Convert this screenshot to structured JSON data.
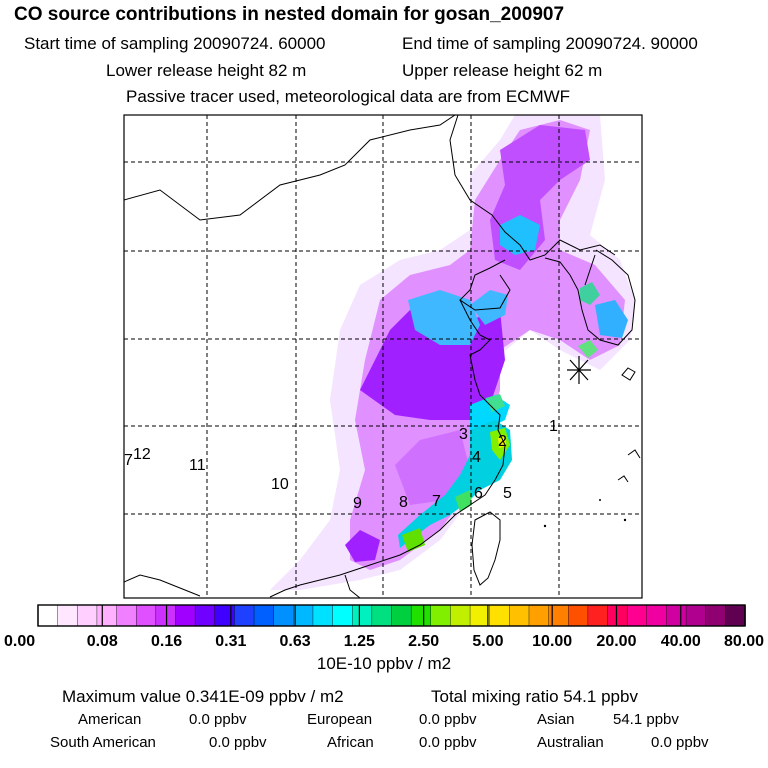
{
  "header": {
    "title": "CO  source contributions in nested domain for gosan_200907",
    "start_time": "Start time of sampling 20090724. 60000",
    "end_time": "End time of sampling 20090724. 90000",
    "lower_release": "Lower release height   82 m",
    "upper_release": "Upper release height   62 m",
    "tracer_note": "Passive tracer used, meteorological data are from ECMWF"
  },
  "map": {
    "region_labels": [
      "1",
      "2",
      "3",
      "4",
      "5",
      "6",
      "7",
      "8",
      "9",
      "10",
      "11",
      "12",
      "7"
    ],
    "receptor_marker": "gosan-receptor"
  },
  "colorbar": {
    "colors": [
      "#ffffff",
      "#ffe8ff",
      "#ffd0ff",
      "#ffb0ff",
      "#f080ff",
      "#e050ff",
      "#cc30ff",
      "#a000ff",
      "#7000ff",
      "#4000ff",
      "#2040ff",
      "#0060ff",
      "#0090ff",
      "#00b8ff",
      "#00e0ff",
      "#00ffff",
      "#00f0c0",
      "#00e080",
      "#00d040",
      "#20e000",
      "#80f000",
      "#c0f000",
      "#f0f000",
      "#ffe000",
      "#ffc000",
      "#ffa000",
      "#ff8000",
      "#ff5000",
      "#ff2020",
      "#ff0060",
      "#ff0090",
      "#f000a0",
      "#d000a0",
      "#b00090",
      "#900070",
      "#600050"
    ],
    "tick_labels": [
      "0.00",
      "0.08",
      "0.16",
      "0.31",
      "0.63",
      "1.25",
      "2.50",
      "5.00",
      "10.00",
      "20.00",
      "40.00",
      "80.00"
    ],
    "units": "10E-10 ppbv / m2"
  },
  "summary": {
    "max_value": "Maximum value  0.341E-09 ppbv / m2",
    "total_mixing": "Total mixing ratio       54.1 ppbv",
    "rows": [
      [
        {
          "label": "American",
          "value": "0.0 ppbv"
        },
        {
          "label": "European",
          "value": "0.0 ppbv"
        },
        {
          "label": "Asian",
          "value": "54.1 ppbv"
        }
      ],
      [
        {
          "label": "South American",
          "value": "0.0 ppbv"
        },
        {
          "label": "African",
          "value": "0.0 ppbv"
        },
        {
          "label": "Australian",
          "value": "0.0 ppbv"
        }
      ]
    ]
  }
}
